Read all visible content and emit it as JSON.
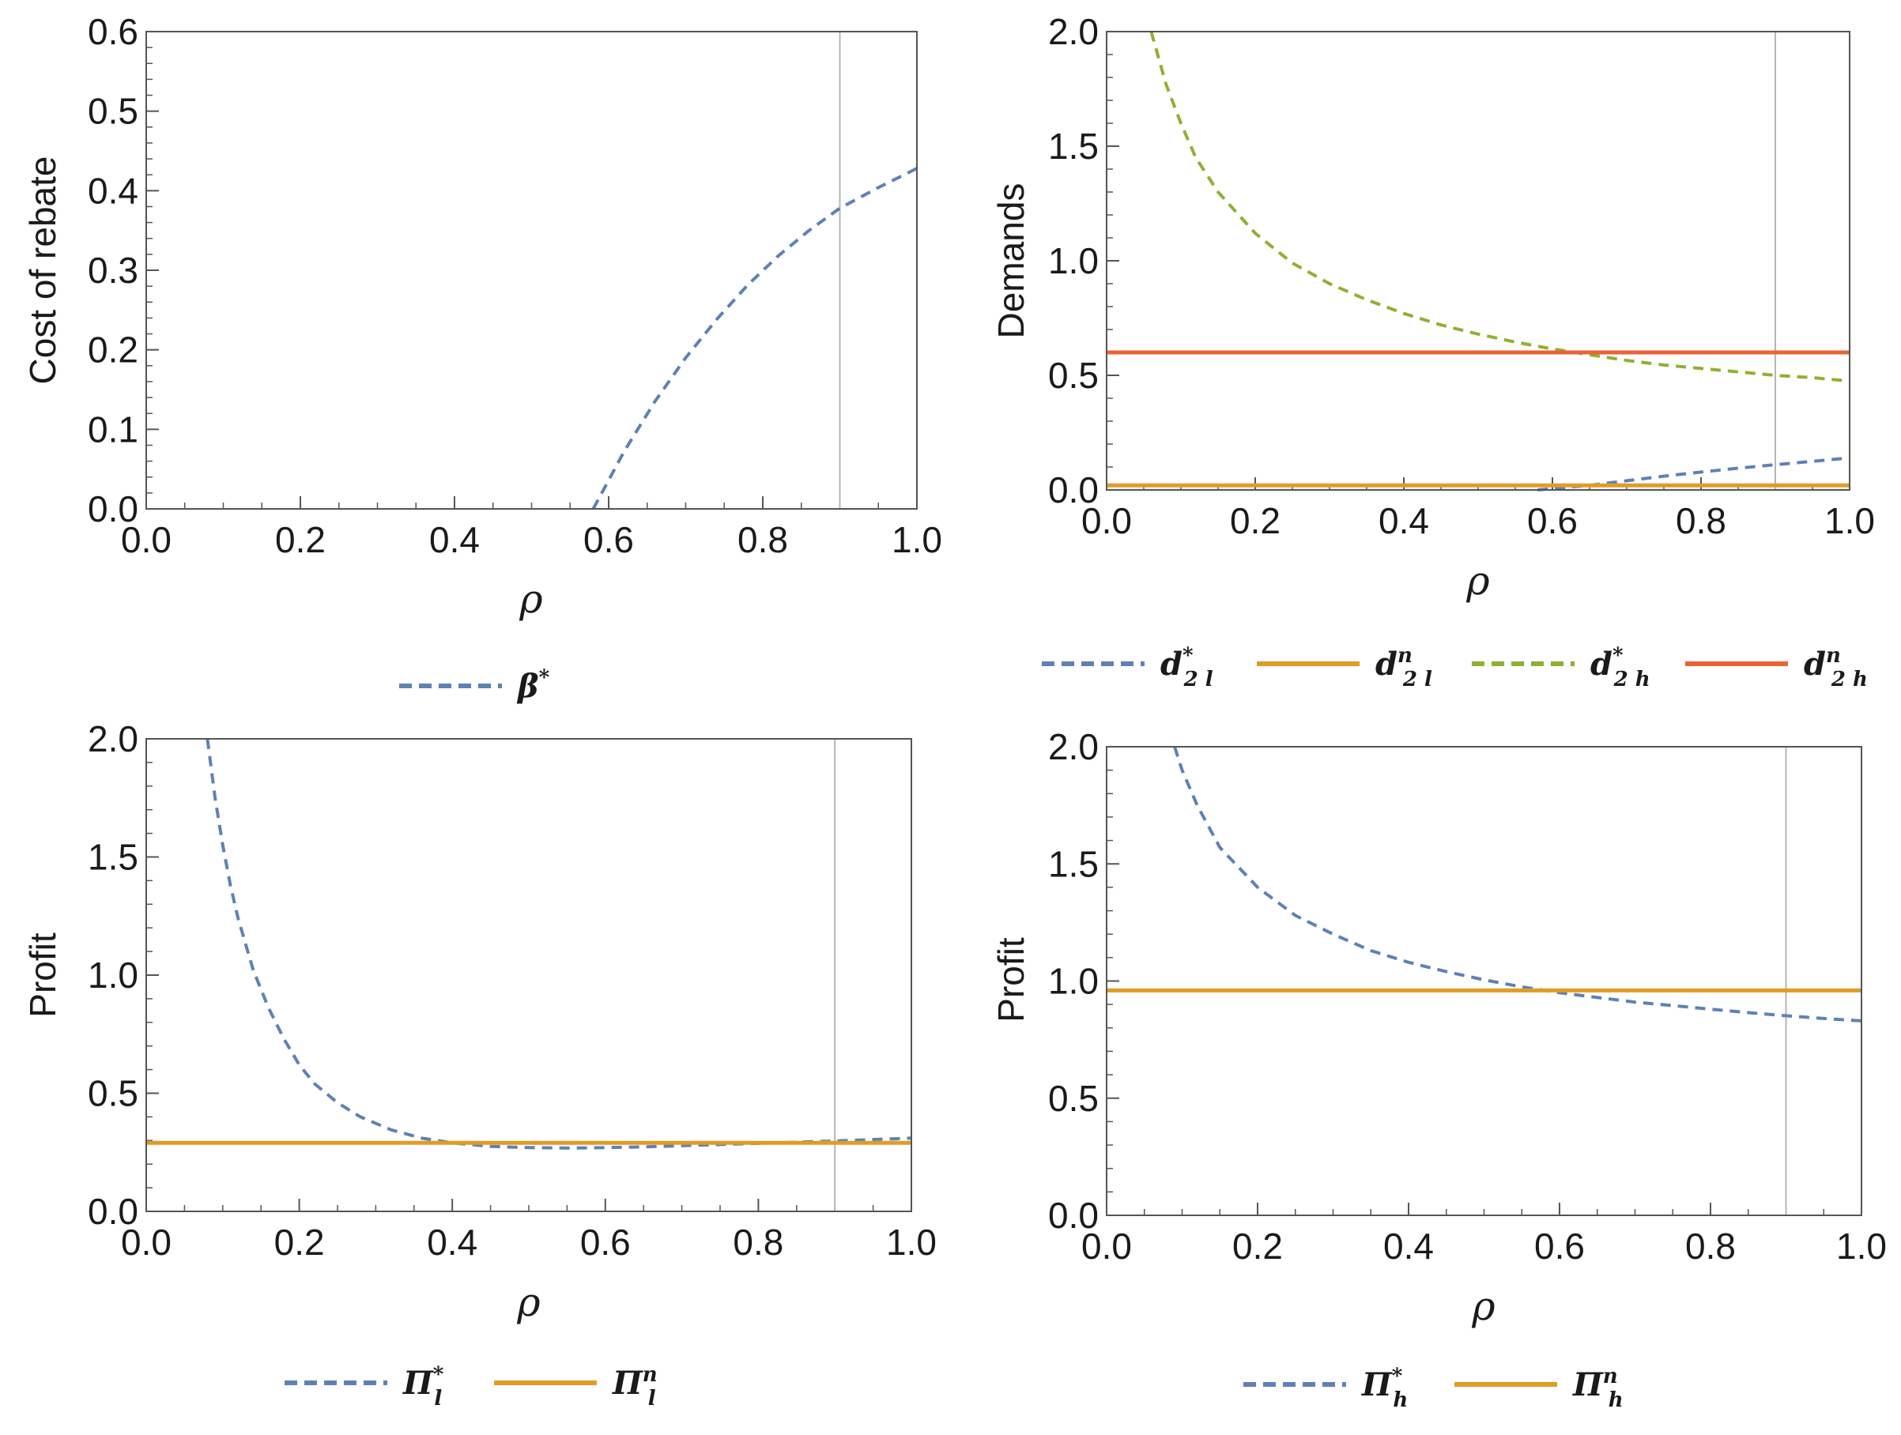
{
  "chart_data": [
    {
      "id": "p1",
      "type": "line",
      "xlabel": "ρ",
      "ylabel": "Cost of rebate",
      "xlim": [
        0,
        1
      ],
      "ylim": [
        0,
        0.6
      ],
      "x_ticks": [
        "0.0",
        "0.2",
        "0.4",
        "0.6",
        "0.8",
        "1.0"
      ],
      "y_ticks": [
        "0.0",
        "0.1",
        "0.2",
        "0.3",
        "0.4",
        "0.5",
        "0.6"
      ],
      "vline": 0.9,
      "series": [
        {
          "name": "β*",
          "legend": {
            "base": "β",
            "sup": "*",
            "sub": ""
          },
          "color": "#5e81b5",
          "style": "dashed",
          "x": [
            0.58,
            0.62,
            0.66,
            0.7,
            0.74,
            0.78,
            0.82,
            0.86,
            0.9,
            0.95,
            1.0
          ],
          "y": [
            0.0,
            0.072,
            0.135,
            0.19,
            0.238,
            0.281,
            0.318,
            0.35,
            0.378,
            0.404,
            0.428
          ]
        }
      ]
    },
    {
      "id": "p2",
      "type": "line",
      "xlabel": "ρ",
      "ylabel": "Demands",
      "xlim": [
        0,
        1
      ],
      "ylim": [
        0,
        2.0
      ],
      "x_ticks": [
        "0.0",
        "0.2",
        "0.4",
        "0.6",
        "0.8",
        "1.0"
      ],
      "y_ticks": [
        "0.0",
        "0.5",
        "1.0",
        "1.5",
        "2.0"
      ],
      "vline": 0.9,
      "series": [
        {
          "name": "d*2l",
          "legend": {
            "base": "d",
            "sup": "*",
            "sub": "2 l"
          },
          "color": "#5e81b5",
          "style": "dashed",
          "x": [
            0.58,
            0.65,
            0.7,
            0.75,
            0.8,
            0.85,
            0.9,
            0.95,
            1.0
          ],
          "y": [
            0.0,
            0.02,
            0.04,
            0.06,
            0.078,
            0.095,
            0.11,
            0.125,
            0.14
          ]
        },
        {
          "name": "dn2l",
          "legend": {
            "base": "d",
            "sup": "n",
            "sub": "2 l"
          },
          "color": "#e19c24",
          "style": "solid",
          "x": [
            0,
            1
          ],
          "y": [
            0.02,
            0.02
          ]
        },
        {
          "name": "d*2h",
          "legend": {
            "base": "d",
            "sup": "*",
            "sub": "2 h"
          },
          "color": "#8fb032",
          "style": "dashed",
          "x": [
            0.06,
            0.08,
            0.1,
            0.12,
            0.15,
            0.2,
            0.25,
            0.3,
            0.35,
            0.4,
            0.45,
            0.5,
            0.55,
            0.6,
            0.65,
            0.7,
            0.75,
            0.8,
            0.85,
            0.9,
            0.95,
            1.0
          ],
          "y": [
            2.0,
            1.77,
            1.6,
            1.45,
            1.3,
            1.12,
            0.99,
            0.9,
            0.83,
            0.77,
            0.72,
            0.68,
            0.645,
            0.615,
            0.59,
            0.565,
            0.545,
            0.53,
            0.515,
            0.5,
            0.49,
            0.475
          ]
        },
        {
          "name": "dn2h",
          "legend": {
            "base": "d",
            "sup": "n",
            "sub": "2 h"
          },
          "color": "#eb6235",
          "style": "solid",
          "x": [
            0,
            1
          ],
          "y": [
            0.6,
            0.6
          ]
        }
      ]
    },
    {
      "id": "p3",
      "type": "line",
      "xlabel": "ρ",
      "ylabel": "Profit",
      "xlim": [
        0,
        1
      ],
      "ylim": [
        0,
        2.0
      ],
      "x_ticks": [
        "0.0",
        "0.2",
        "0.4",
        "0.6",
        "0.8",
        "1.0"
      ],
      "y_ticks": [
        "0.0",
        "0.5",
        "1.0",
        "1.5",
        "2.0"
      ],
      "vline": 0.9,
      "series": [
        {
          "name": "Π*l",
          "legend": {
            "base": "Π",
            "sup": "*",
            "sub": "l"
          },
          "color": "#5e81b5",
          "style": "dashed",
          "x": [
            0.08,
            0.09,
            0.1,
            0.11,
            0.12,
            0.14,
            0.16,
            0.18,
            0.2,
            0.22,
            0.25,
            0.28,
            0.32,
            0.36,
            0.4,
            0.45,
            0.5,
            0.55,
            0.6,
            0.65,
            0.7,
            0.8,
            0.9,
            1.0
          ],
          "y": [
            2.0,
            1.75,
            1.55,
            1.38,
            1.24,
            1.02,
            0.86,
            0.73,
            0.62,
            0.54,
            0.46,
            0.4,
            0.345,
            0.31,
            0.29,
            0.275,
            0.27,
            0.268,
            0.27,
            0.273,
            0.278,
            0.288,
            0.298,
            0.31
          ]
        },
        {
          "name": "Πnl",
          "legend": {
            "base": "Π",
            "sup": "n",
            "sub": "l"
          },
          "color": "#e19c24",
          "style": "solid",
          "x": [
            0,
            1
          ],
          "y": [
            0.29,
            0.29
          ]
        }
      ]
    },
    {
      "id": "p4",
      "type": "line",
      "xlabel": "ρ",
      "ylabel": "Profit",
      "xlim": [
        0,
        1
      ],
      "ylim": [
        0,
        2.0
      ],
      "x_ticks": [
        "0.0",
        "0.2",
        "0.4",
        "0.6",
        "0.8",
        "1.0"
      ],
      "y_ticks": [
        "0.0",
        "0.5",
        "1.0",
        "1.5",
        "2.0"
      ],
      "vline": 0.9,
      "series": [
        {
          "name": "Π*h",
          "legend": {
            "base": "Π",
            "sup": "*",
            "sub": "h"
          },
          "color": "#5e81b5",
          "style": "dashed",
          "x": [
            0.09,
            0.1,
            0.12,
            0.15,
            0.2,
            0.25,
            0.3,
            0.35,
            0.4,
            0.45,
            0.5,
            0.55,
            0.6,
            0.65,
            0.7,
            0.75,
            0.8,
            0.85,
            0.9,
            0.95,
            1.0
          ],
          "y": [
            2.0,
            1.9,
            1.75,
            1.57,
            1.4,
            1.28,
            1.2,
            1.13,
            1.08,
            1.04,
            1.005,
            0.975,
            0.95,
            0.93,
            0.91,
            0.895,
            0.88,
            0.865,
            0.852,
            0.84,
            0.83
          ]
        },
        {
          "name": "Πnh",
          "legend": {
            "base": "Π",
            "sup": "n",
            "sub": "h"
          },
          "color": "#e19c24",
          "style": "solid",
          "x": [
            0,
            1
          ],
          "y": [
            0.96,
            0.96
          ]
        }
      ]
    }
  ]
}
